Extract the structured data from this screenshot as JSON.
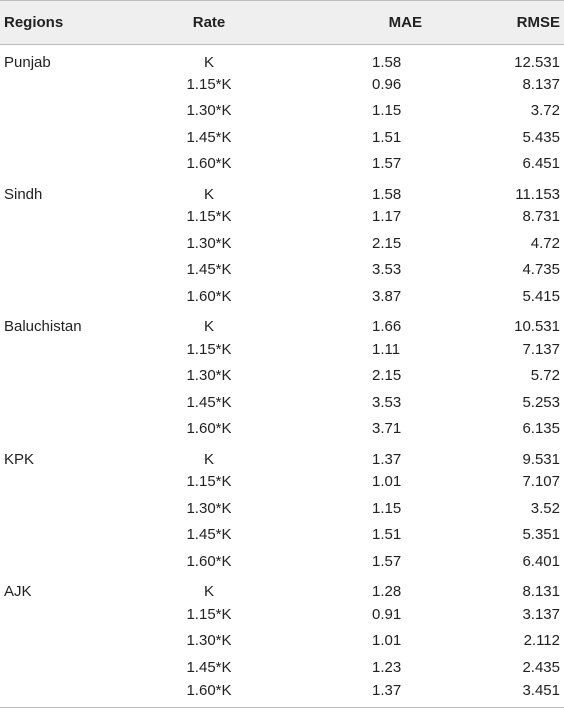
{
  "table": {
    "headers": {
      "regions": "Regions",
      "rate": "Rate",
      "mae": "MAE",
      "rmse": "RMSE"
    },
    "rows": [
      {
        "region": "Punjab",
        "rate": "K",
        "mae": "1.58",
        "rmse": "12.531"
      },
      {
        "region": "",
        "rate": "1.15*K",
        "mae": "0.96",
        "rmse": "8.137"
      },
      {
        "region": "",
        "rate": "1.30*K",
        "mae": "1.15",
        "rmse": "3.72"
      },
      {
        "region": "",
        "rate": "1.45*K",
        "mae": "1.51",
        "rmse": "5.435"
      },
      {
        "region": "",
        "rate": "1.60*K",
        "mae": "1.57",
        "rmse": "6.451"
      },
      {
        "region": "Sindh",
        "rate": "K",
        "mae": "1.58",
        "rmse": "11.153"
      },
      {
        "region": "",
        "rate": "1.15*K",
        "mae": "1.17",
        "rmse": "8.731"
      },
      {
        "region": "",
        "rate": "1.30*K",
        "mae": "2.15",
        "rmse": "4.72"
      },
      {
        "region": "",
        "rate": "1.45*K",
        "mae": "3.53",
        "rmse": "4.735"
      },
      {
        "region": "",
        "rate": "1.60*K",
        "mae": "3.87",
        "rmse": "5.415"
      },
      {
        "region": "Baluchistan",
        "rate": "K",
        "mae": "1.66",
        "rmse": "10.531"
      },
      {
        "region": "",
        "rate": "1.15*K",
        "mae": "1.11",
        "rmse": "7.137"
      },
      {
        "region": "",
        "rate": "1.30*K",
        "mae": "2.15",
        "rmse": "5.72"
      },
      {
        "region": "",
        "rate": "1.45*K",
        "mae": "3.53",
        "rmse": "5.253"
      },
      {
        "region": "",
        "rate": "1.60*K",
        "mae": "3.71",
        "rmse": "6.135"
      },
      {
        "region": "KPK",
        "rate": "K",
        "mae": "1.37",
        "rmse": "9.531"
      },
      {
        "region": "",
        "rate": "1.15*K",
        "mae": "1.01",
        "rmse": "7.107"
      },
      {
        "region": "",
        "rate": "1.30*K",
        "mae": "1.15",
        "rmse": "3.52"
      },
      {
        "region": "",
        "rate": "1.45*K",
        "mae": "1.51",
        "rmse": "5.351"
      },
      {
        "region": "",
        "rate": "1.60*K",
        "mae": "1.57",
        "rmse": "6.401"
      },
      {
        "region": "AJK",
        "rate": "K",
        "mae": "1.28",
        "rmse": "8.131"
      },
      {
        "region": "",
        "rate": "1.15*K",
        "mae": "0.91",
        "rmse": "3.137"
      },
      {
        "region": "",
        "rate": "1.30*K",
        "mae": "1.01",
        "rmse": "2.112"
      },
      {
        "region": "",
        "rate": "1.45*K",
        "mae": "1.23",
        "rmse": "2.435"
      },
      {
        "region": "",
        "rate": "1.60*K",
        "mae": "1.37",
        "rmse": "3.451"
      }
    ]
  }
}
